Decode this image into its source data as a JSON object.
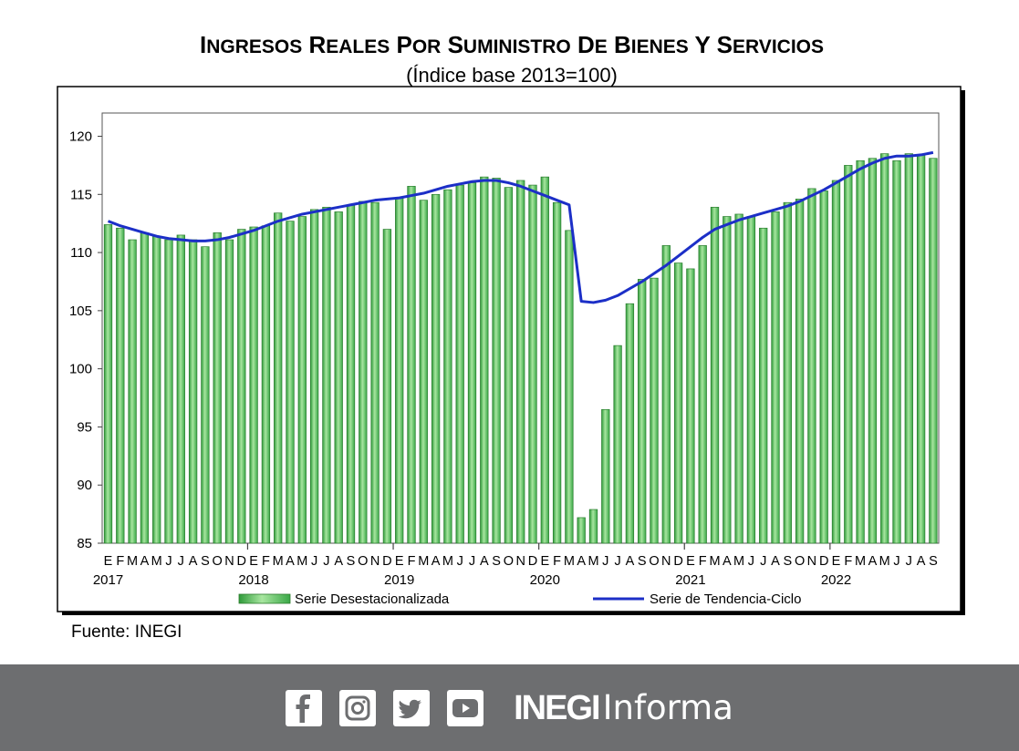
{
  "chart_data": {
    "type": "bar+line",
    "title": "Ingresos reales por suministro de bienes y servicios",
    "title_main": "INGRESOS REALES POR SUMINISTRO DE BIENES Y SERVICIOS",
    "subtitle": "(Índice base 2013=100)",
    "ylim": [
      85,
      122
    ],
    "yticks": [
      85,
      90,
      95,
      100,
      105,
      110,
      115,
      120
    ],
    "grid": false,
    "legend_position": "bottom",
    "month_letters": [
      "E",
      "F",
      "M",
      "A",
      "M",
      "J",
      "J",
      "A",
      "S",
      "O",
      "N",
      "D"
    ],
    "start": "2017-01",
    "years": [
      {
        "label": "2017",
        "index": 0
      },
      {
        "label": "2018",
        "index": 12
      },
      {
        "label": "2019",
        "index": 24
      },
      {
        "label": "2020",
        "index": 36
      },
      {
        "label": "2021",
        "index": 48
      },
      {
        "label": "2022",
        "index": 60
      }
    ],
    "series": [
      {
        "name": "Serie Desestacionalizada",
        "kind": "bar",
        "color": "#5dbf5d",
        "values": [
          112.4,
          112.1,
          111.1,
          111.7,
          111.4,
          111.1,
          111.5,
          111.1,
          110.5,
          111.7,
          111.1,
          112.0,
          112.2,
          112.3,
          113.4,
          112.7,
          113.1,
          113.7,
          113.9,
          113.5,
          114.1,
          114.4,
          114.3,
          112.0,
          114.7,
          115.7,
          114.5,
          115.0,
          115.4,
          115.8,
          116.0,
          116.5,
          116.4,
          115.6,
          116.2,
          115.8,
          116.5,
          114.3,
          111.9,
          87.2,
          87.9,
          96.5,
          102.0,
          105.6,
          107.7,
          107.8,
          110.6,
          109.1,
          108.6,
          110.6,
          113.9,
          113.1,
          113.3,
          113.1,
          112.1,
          113.5,
          114.3,
          114.6,
          115.5,
          115.3,
          116.2,
          117.5,
          117.9,
          118.1,
          118.5,
          117.9,
          118.5,
          118.4,
          118.1
        ]
      },
      {
        "name": "Serie de Tendencia-Ciclo",
        "kind": "line",
        "color": "#1c2fc7",
        "values": [
          112.7,
          112.3,
          112.0,
          111.7,
          111.4,
          111.2,
          111.1,
          111.0,
          111.0,
          111.1,
          111.3,
          111.6,
          111.9,
          112.3,
          112.7,
          113.0,
          113.3,
          113.5,
          113.7,
          113.9,
          114.1,
          114.3,
          114.5,
          114.6,
          114.7,
          114.9,
          115.1,
          115.4,
          115.7,
          115.9,
          116.1,
          116.2,
          116.2,
          116.0,
          115.7,
          115.3,
          114.9,
          114.5,
          114.1,
          105.8,
          105.7,
          105.9,
          106.3,
          106.9,
          107.5,
          108.2,
          108.9,
          109.7,
          110.5,
          111.3,
          112.0,
          112.4,
          112.8,
          113.1,
          113.4,
          113.7,
          114.0,
          114.4,
          114.9,
          115.4,
          116.0,
          116.6,
          117.2,
          117.7,
          118.1,
          118.3,
          118.3,
          118.4,
          118.6
        ]
      }
    ]
  },
  "source": "Fuente: INEGI",
  "footer": {
    "icons": [
      "facebook-icon",
      "instagram-icon",
      "twitter-icon",
      "youtube-icon"
    ],
    "brand_bold": "INEGI",
    "brand_light": "Informa",
    "background": "#6d6e70"
  }
}
